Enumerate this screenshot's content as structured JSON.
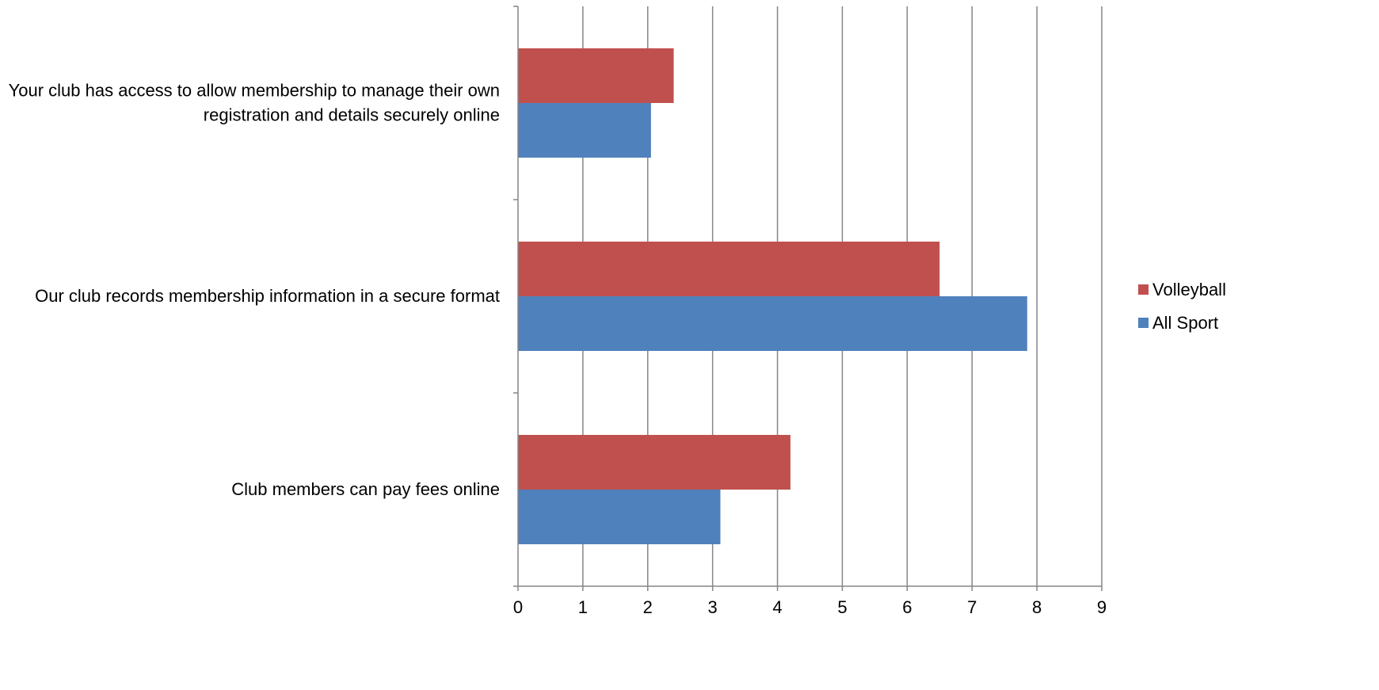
{
  "chart_data": {
    "type": "bar",
    "orientation": "horizontal",
    "categories": [
      "Your club has access to allow membership to manage their own registration and details securely online",
      "Our club records membership information in a secure format",
      "Club members can pay fees online"
    ],
    "category_label_lines": [
      [
        "Your club has access to allow membership to manage their own",
        "registration and details securely online"
      ],
      [
        "Our club records membership information in a secure format"
      ],
      [
        "Club members can pay fees online"
      ]
    ],
    "series": [
      {
        "name": "Volleyball",
        "color": "#C0504D",
        "values": [
          2.4,
          6.5,
          4.2
        ]
      },
      {
        "name": "All Sport",
        "color": "#4F81BD",
        "values": [
          2.05,
          7.85,
          3.12
        ]
      }
    ],
    "xlim": [
      0,
      9
    ],
    "xticks": [
      "0",
      "1",
      "2",
      "3",
      "4",
      "5",
      "6",
      "7",
      "8",
      "9"
    ],
    "grid": "vertical",
    "legend_position": "right",
    "title": "",
    "xlabel": "",
    "ylabel": ""
  }
}
